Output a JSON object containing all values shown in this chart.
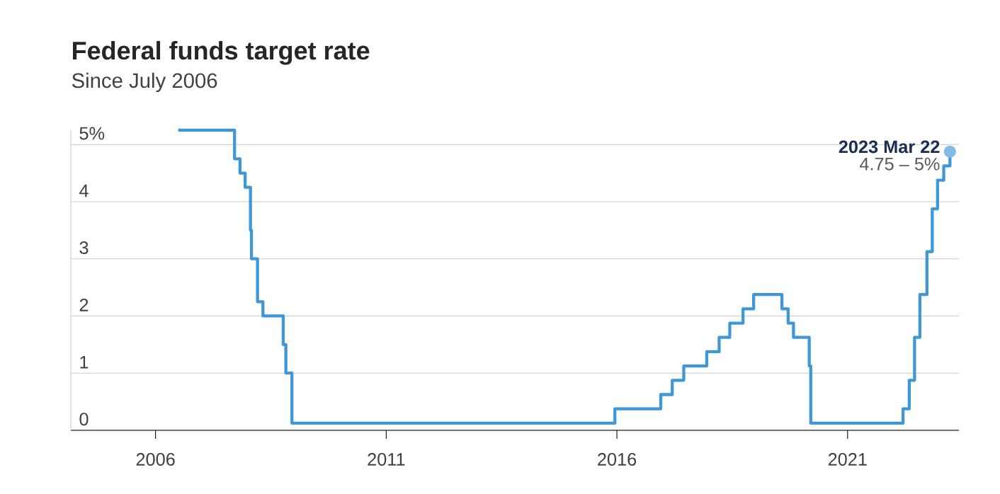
{
  "chart_data": {
    "type": "step",
    "title": "Federal funds target rate",
    "subtitle": "Since July 2006",
    "x": [
      "2006-06-29",
      "2007-09-18",
      "2007-10-31",
      "2007-12-11",
      "2008-01-22",
      "2008-01-30",
      "2008-03-18",
      "2008-04-30",
      "2008-10-08",
      "2008-10-29",
      "2008-12-16",
      "2015-12-16",
      "2016-12-14",
      "2017-03-15",
      "2017-06-14",
      "2017-12-13",
      "2018-03-21",
      "2018-06-13",
      "2018-09-26",
      "2018-12-19",
      "2019-07-31",
      "2019-09-18",
      "2019-10-30",
      "2020-03-03",
      "2020-03-15",
      "2022-03-16",
      "2022-05-04",
      "2022-06-15",
      "2022-07-27",
      "2022-09-21",
      "2022-11-02",
      "2022-12-14",
      "2023-02-01",
      "2023-03-22"
    ],
    "series": [
      {
        "color": "#3f97d8",
        "values": [
          5.25,
          4.75,
          4.5,
          4.25,
          3.5,
          3.0,
          2.25,
          2.0,
          1.5,
          1.0,
          0.125,
          0.375,
          0.625,
          0.875,
          1.125,
          1.375,
          1.625,
          1.875,
          2.125,
          2.375,
          2.125,
          1.875,
          1.625,
          1.125,
          0.125,
          0.375,
          0.875,
          1.625,
          2.375,
          3.125,
          3.875,
          4.375,
          4.625,
          4.875
        ]
      }
    ],
    "xlim": [
      "2004-03",
      "2023-06"
    ],
    "xticks": [
      "2006",
      "2011",
      "2016",
      "2021"
    ],
    "ylim": [
      0,
      5.25
    ],
    "yticks": [
      0,
      1,
      2,
      3,
      4,
      {
        "value": 5,
        "label": "5%"
      }
    ],
    "grid": "y",
    "marker": "none",
    "line_style": "solid",
    "annotations": [
      {
        "text": "2023 Mar 22",
        "x": "2023-03-22",
        "y": 4.875
      },
      {
        "text": "4.75 – 5%",
        "x": "2023-03-22",
        "y": 4.875
      }
    ]
  }
}
